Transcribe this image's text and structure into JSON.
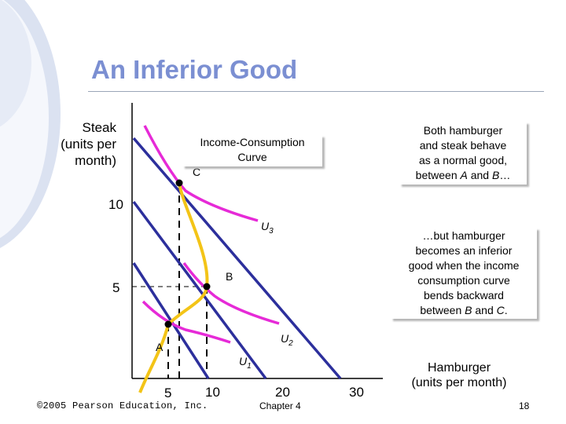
{
  "slide": {
    "title": "An Inferior Good",
    "y_axis_label": "Steak\n(units per\nmonth)",
    "x_axis_label": "Hamburger\n(units per month)",
    "y_ticks": [
      "10",
      "5"
    ],
    "x_ticks": [
      "5",
      "10",
      "20",
      "30"
    ],
    "points": {
      "a": "A",
      "b": "B",
      "c": "C"
    },
    "curves": {
      "u1": {
        "letter": "U",
        "sub": "1"
      },
      "u2": {
        "letter": "U",
        "sub": "2"
      },
      "u3": {
        "letter": "U",
        "sub": "3"
      }
    },
    "icc_label": "Income-Consumption\nCurve",
    "callout_top": "Both hamburger\nand steak behave\nas a normal good,",
    "callout_top_last": {
      "pre": "between ",
      "a": "A",
      "mid": " and ",
      "b": "B",
      "post": "…"
    },
    "callout_bottom": "…but hamburger\nbecomes an inferior\ngood when the income\nconsumption curve\nbends backward",
    "callout_bottom_last": {
      "pre": "between ",
      "b": "B",
      "mid": " and ",
      "c": "C",
      "post": "."
    },
    "footer": {
      "copyright": "©2005 Pearson Education, Inc.",
      "chapter": "Chapter 4",
      "page": "18"
    },
    "colors": {
      "title": "#7b8fd2",
      "budget_line": "#2c2f9c",
      "indifference_curve": "#e62ad7",
      "income_consumption_curve": "#f3c417",
      "left_bar": "#dbe2f1"
    }
  }
}
